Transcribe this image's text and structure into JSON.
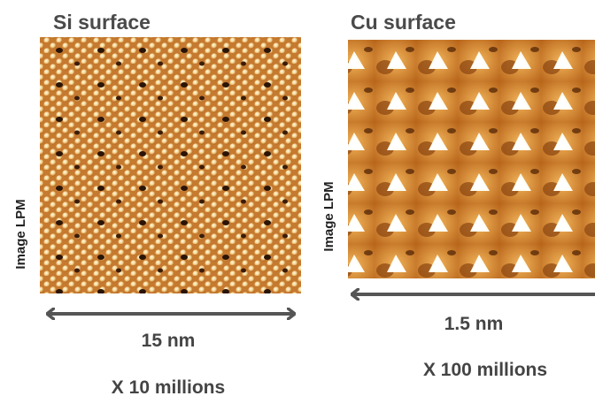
{
  "panels": [
    {
      "title": "Si surface",
      "side_label": "Image LPM",
      "scale": "15 nm",
      "magnification": "X 10 millions"
    },
    {
      "title": "Cu surface",
      "side_label": "Image LPM",
      "scale": "1.5 nm",
      "magnification": "X 100 millions"
    }
  ]
}
